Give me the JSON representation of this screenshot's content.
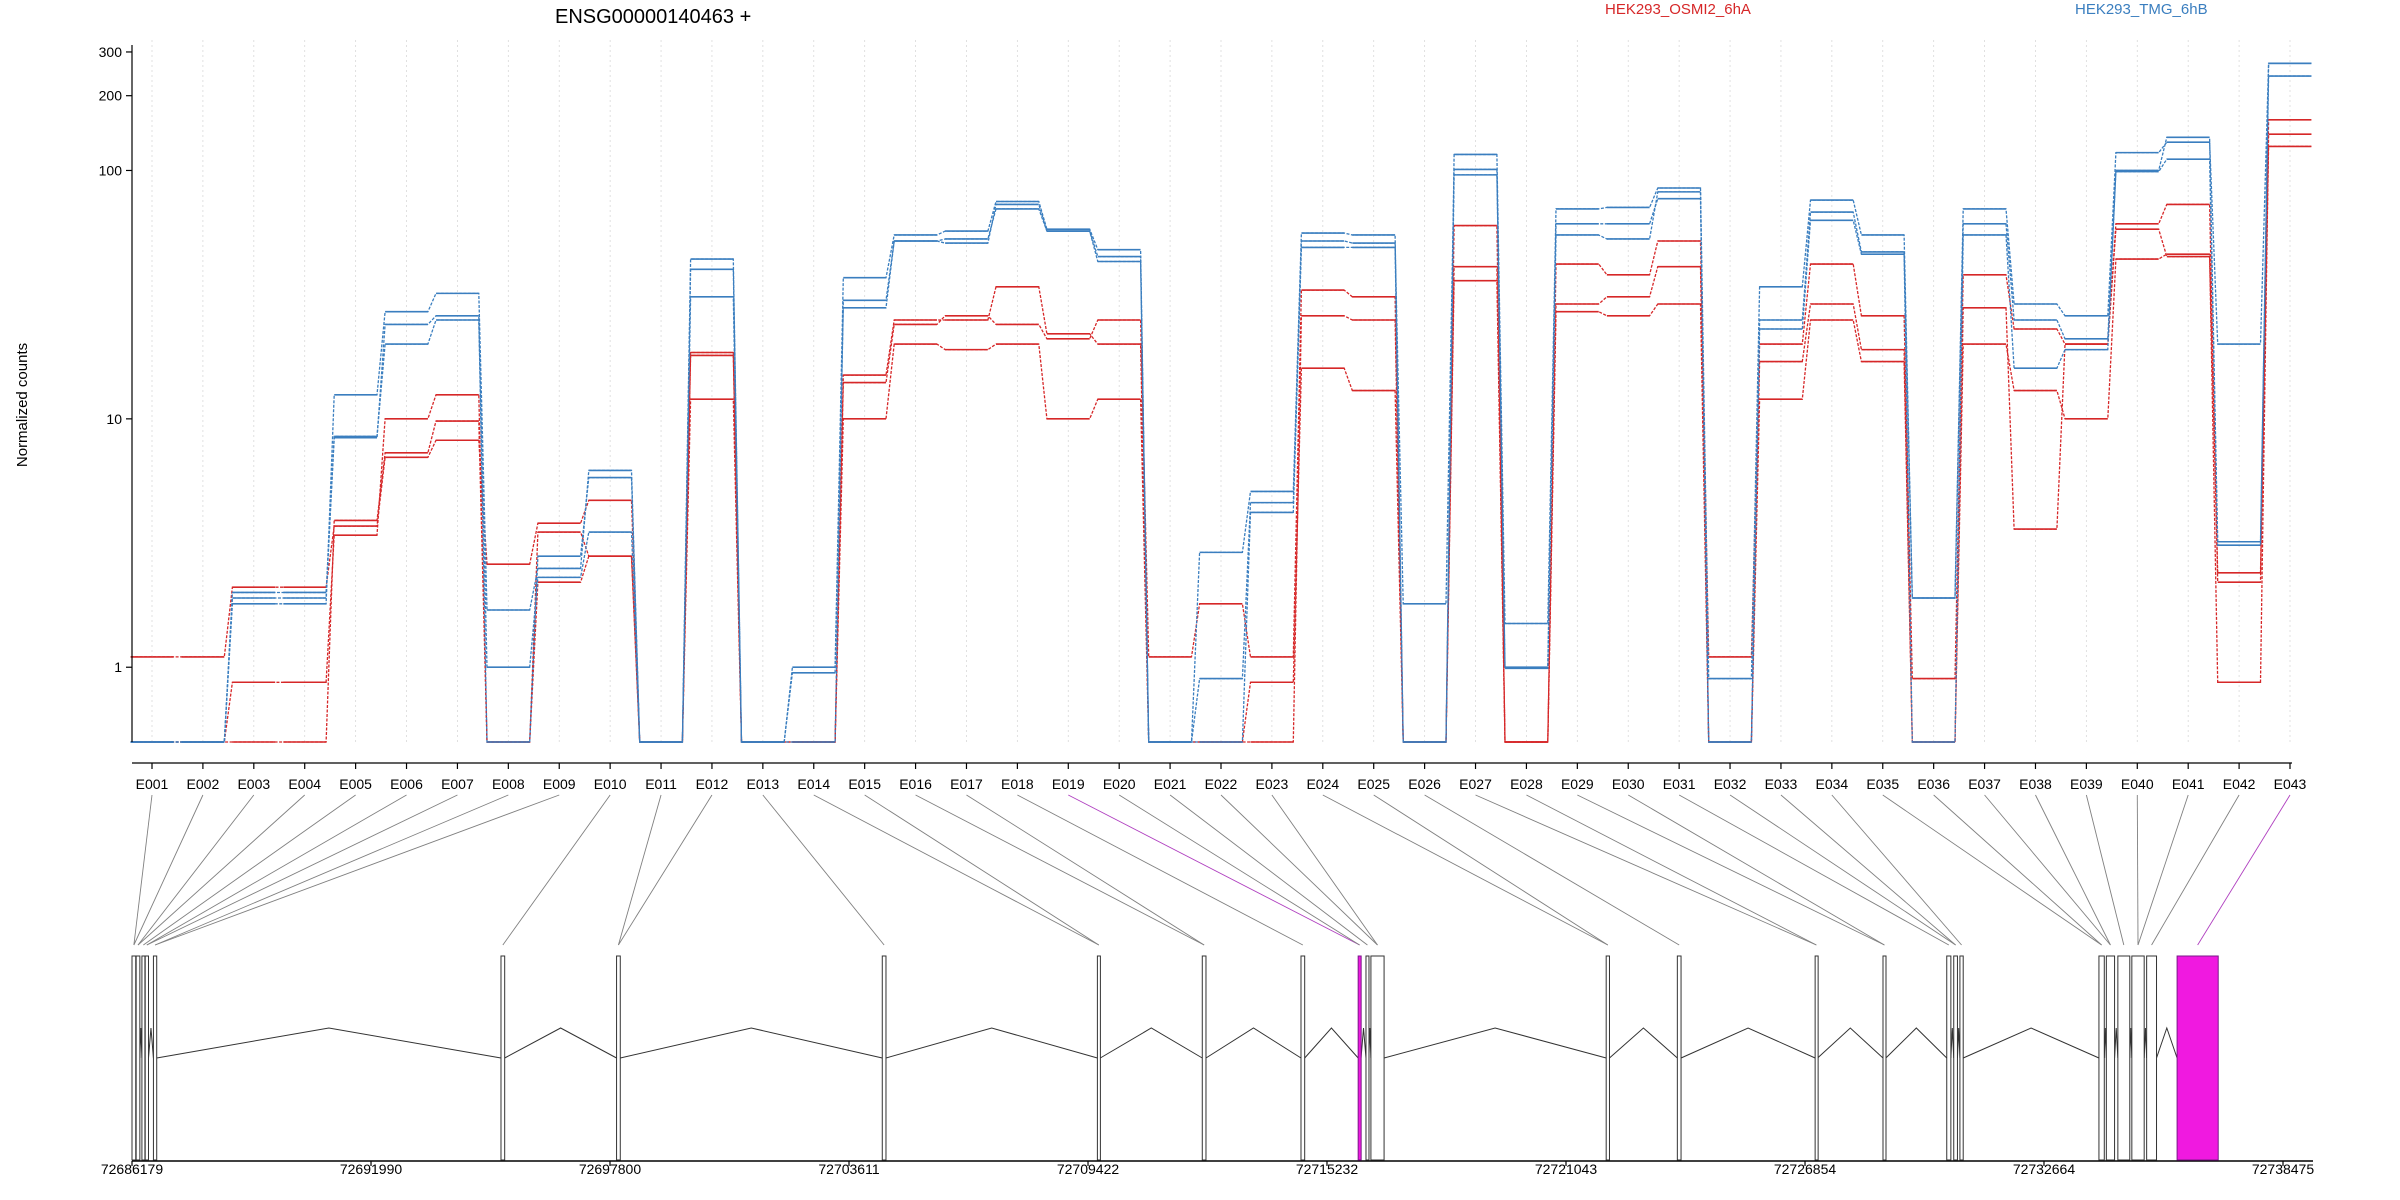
{
  "chart_data": {
    "type": "line",
    "title": "ENSG00000140463 +",
    "ylabel": "Normalized counts",
    "xlabel": "",
    "yscale": "log",
    "ylim": [
      0.5,
      320
    ],
    "yticks": [
      1,
      10,
      100,
      200,
      300
    ],
    "grid": true,
    "legend": "top-right",
    "categories": [
      "E001",
      "E002",
      "E003",
      "E004",
      "E005",
      "E006",
      "E007",
      "E008",
      "E009",
      "E010",
      "E011",
      "E012",
      "E013",
      "E014",
      "E015",
      "E016",
      "E017",
      "E018",
      "E019",
      "E020",
      "E021",
      "E022",
      "E023",
      "E024",
      "E025",
      "E026",
      "E027",
      "E028",
      "E029",
      "E030",
      "E031",
      "E032",
      "E033",
      "E034",
      "E035",
      "E036",
      "E037",
      "E038",
      "E039",
      "E040",
      "E041",
      "E042",
      "E043"
    ],
    "groups": [
      {
        "name": "HEK293_OSMI2_6hA",
        "color": "#d62728"
      },
      {
        "name": "HEK293_TMG_6hB",
        "color": "#3a7ebf"
      }
    ],
    "series": [
      {
        "group": "HEK293_OSMI2_6hA",
        "color": "#d62728",
        "values": [
          1.1,
          1.1,
          2.1,
          2.1,
          3.7,
          7,
          8.2,
          2.6,
          3.8,
          4.7,
          0.5,
          18.5,
          0.5,
          0.5,
          14,
          24,
          26,
          24,
          21,
          25,
          1.1,
          1.8,
          1.1,
          33,
          31,
          0.5,
          60,
          0.5,
          42,
          38,
          52,
          1.1,
          20,
          42,
          26,
          0.9,
          38,
          23,
          20,
          61,
          73,
          2.2,
          160
        ]
      },
      {
        "group": "HEK293_OSMI2_6hA",
        "color": "#d62728",
        "values": [
          0.5,
          0.5,
          0.87,
          0.87,
          3.4,
          10,
          12.5,
          0.5,
          2.2,
          2.8,
          0.5,
          12,
          0.5,
          0.5,
          10,
          20,
          19,
          20,
          10,
          12,
          0.5,
          0.5,
          0.87,
          16,
          13,
          0.5,
          36,
          0.5,
          27,
          26,
          29,
          0.5,
          12,
          25,
          17,
          0.5,
          20,
          13,
          10,
          44,
          46,
          0.87,
          140
        ]
      },
      {
        "group": "HEK293_OSMI2_6hA",
        "color": "#d62728",
        "values": [
          0.5,
          0.5,
          0.5,
          0.5,
          3.9,
          7.3,
          9.8,
          0.5,
          3.5,
          2.8,
          0.5,
          18,
          0.5,
          0.5,
          15,
          25,
          25,
          34,
          22,
          20,
          0.5,
          0.5,
          0.5,
          26,
          25,
          0.5,
          41,
          0.5,
          29,
          31,
          41,
          0.5,
          17,
          29,
          19,
          0.5,
          28,
          3.6,
          20,
          58,
          45,
          2.4,
          125
        ]
      },
      {
        "group": "HEK293_TMG_6hB",
        "color": "#3a7ebf",
        "values": [
          0.5,
          0.5,
          1.8,
          1.8,
          12.5,
          27,
          32,
          1.7,
          2.5,
          6.2,
          0.5,
          44,
          0.5,
          1,
          37,
          55,
          57,
          75,
          58,
          48,
          0.5,
          2.9,
          5.1,
          56,
          55,
          0.5,
          116,
          1.5,
          70,
          71,
          85,
          0.9,
          34,
          76,
          55,
          1.9,
          70,
          29,
          26,
          118,
          130,
          20,
          270
        ]
      },
      {
        "group": "HEK293_TMG_6hB",
        "color": "#3a7ebf",
        "values": [
          0.5,
          0.5,
          1.9,
          1.9,
          8.5,
          20,
          25,
          1,
          2.3,
          3.5,
          0.5,
          40,
          0.5,
          0.5,
          30,
          52,
          53,
          70,
          57,
          45,
          0.5,
          0.9,
          4.6,
          52,
          51,
          1.8,
          101,
          0.99,
          61,
          61,
          77,
          0.5,
          25,
          68,
          47,
          1.9,
          61,
          25,
          21,
          99,
          111,
          3.2,
          240
        ]
      },
      {
        "group": "HEK293_TMG_6hB",
        "color": "#3a7ebf",
        "values": [
          0.5,
          0.5,
          2,
          2,
          8.4,
          24,
          26,
          0.5,
          2.8,
          5.8,
          0.5,
          31,
          0.5,
          0.95,
          28,
          52,
          51,
          73,
          57,
          43,
          0.5,
          0.5,
          4.2,
          49,
          49,
          0.5,
          96,
          1,
          55,
          53,
          82,
          0.5,
          23,
          63,
          46,
          0.5,
          55,
          16,
          19,
          100,
          136,
          3.1,
          270
        ]
      }
    ],
    "gene_model": {
      "genomic_ticks": [
        "72686179",
        "72691990",
        "72697800",
        "72703611",
        "72709422",
        "72715232",
        "72721043",
        "72726854",
        "72732664",
        "72738475"
      ],
      "exon_starts": [
        72686179,
        72686280,
        72686420,
        72686500,
        72686700,
        72695150,
        72697960,
        72704420,
        72709650,
        72712200,
        72714600,
        72715990,
        72716180,
        72716300,
        72722020,
        72723750,
        72727100,
        72728750,
        72730300,
        72730470,
        72730620,
        72734000,
        72734180,
        72734460,
        72734800,
        72735160,
        72735900
      ],
      "exon_ends": [
        72686270,
        72686370,
        72686490,
        72686580,
        72686780,
        72695240,
        72698050,
        72704510,
        72709720,
        72712290,
        72714690,
        72716060,
        72716250,
        72716620,
        72722100,
        72723840,
        72727160,
        72728820,
        72730400,
        72730560,
        72730700,
        72734130,
        72734380,
        72734750,
        72735100,
        72735400,
        72736900
      ],
      "highlight_exons": [
        11,
        26
      ]
    }
  }
}
